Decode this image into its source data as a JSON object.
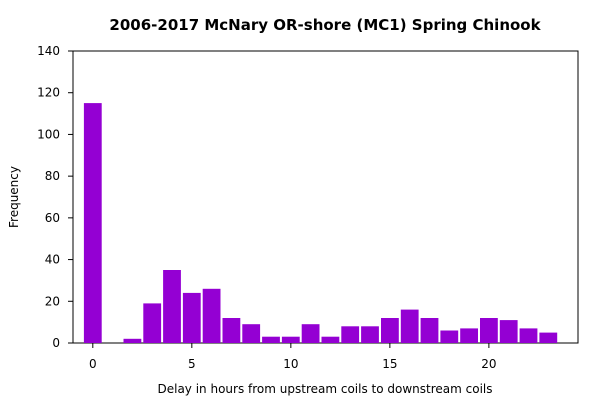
{
  "chart_data": {
    "type": "bar",
    "title": "2006-2017 McNary OR-shore (MC1) Spring Chinook",
    "xlabel": "Delay in hours from upstream coils to downstream coils",
    "ylabel": "Frequency",
    "x": [
      0,
      1,
      2,
      3,
      4,
      5,
      6,
      7,
      8,
      9,
      10,
      11,
      12,
      13,
      14,
      15,
      16,
      17,
      18,
      19,
      20,
      21,
      22,
      23
    ],
    "values": [
      115,
      0,
      2,
      19,
      35,
      24,
      26,
      12,
      9,
      3,
      3,
      9,
      3,
      8,
      8,
      12,
      16,
      12,
      6,
      7,
      12,
      11,
      7,
      5
    ],
    "xlim": [
      -1,
      24.5
    ],
    "ylim": [
      0,
      140
    ],
    "xticks": [
      0,
      5,
      10,
      15,
      20
    ],
    "yticks": [
      0,
      20,
      40,
      60,
      80,
      100,
      120,
      140
    ],
    "bar_color": "#9400d3",
    "grid": false
  }
}
